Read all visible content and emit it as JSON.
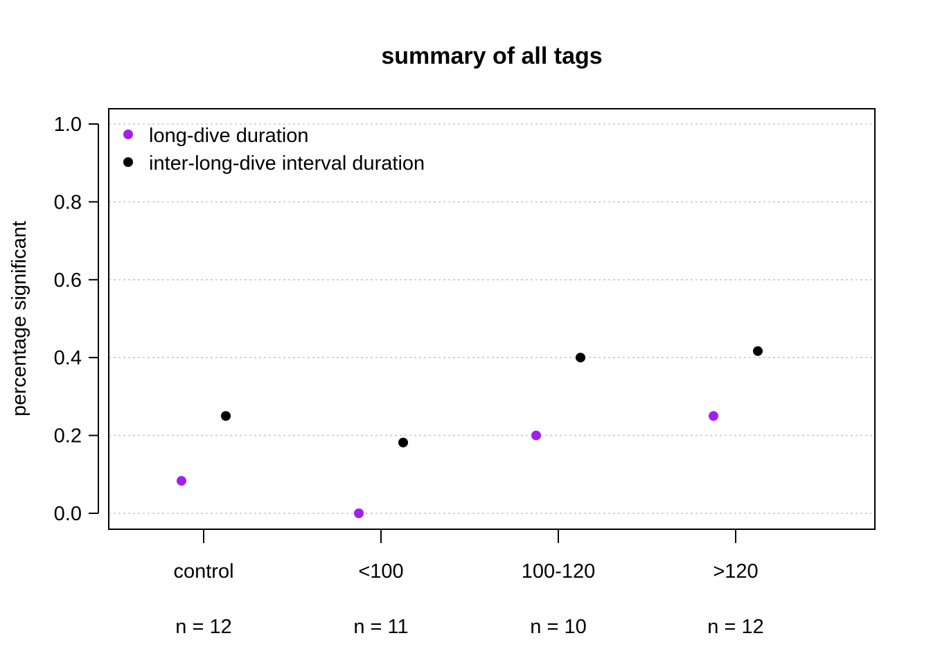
{
  "chart_data": {
    "type": "scatter",
    "title": "summary of all tags",
    "xlabel": "",
    "ylabel": "percentage significant",
    "categories": [
      "control",
      "<100",
      "100-120",
      ">120"
    ],
    "sample_sizes": [
      "n = 12",
      "n = 11",
      "n = 10",
      "n = 12"
    ],
    "ylim": [
      0,
      1
    ],
    "yticks": [
      "0.0",
      "0.2",
      "0.4",
      "0.6",
      "0.8",
      "1.0"
    ],
    "grid": true,
    "legend_position": "top-left",
    "series": [
      {
        "name": "long-dive duration",
        "color": "#a020f0",
        "values": [
          0.0833,
          0.0,
          0.2,
          0.25
        ]
      },
      {
        "name": "inter-long-dive interval duration",
        "color": "#000000",
        "values": [
          0.25,
          0.1818,
          0.4,
          0.4167
        ]
      }
    ]
  }
}
